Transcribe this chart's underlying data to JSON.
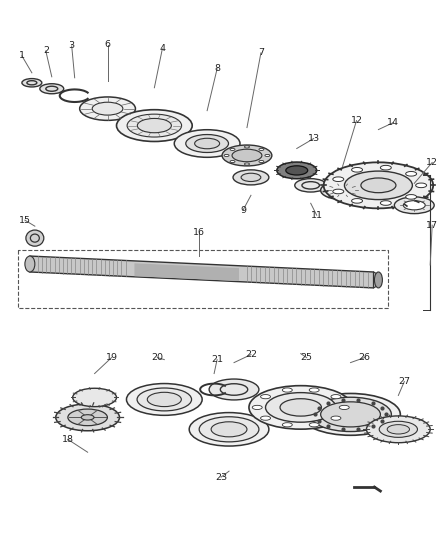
{
  "bg_color": "#ffffff",
  "line_color": "#333333",
  "label_color": "#222222",
  "ew": 0.055,
  "eh_ratio": 0.38
}
